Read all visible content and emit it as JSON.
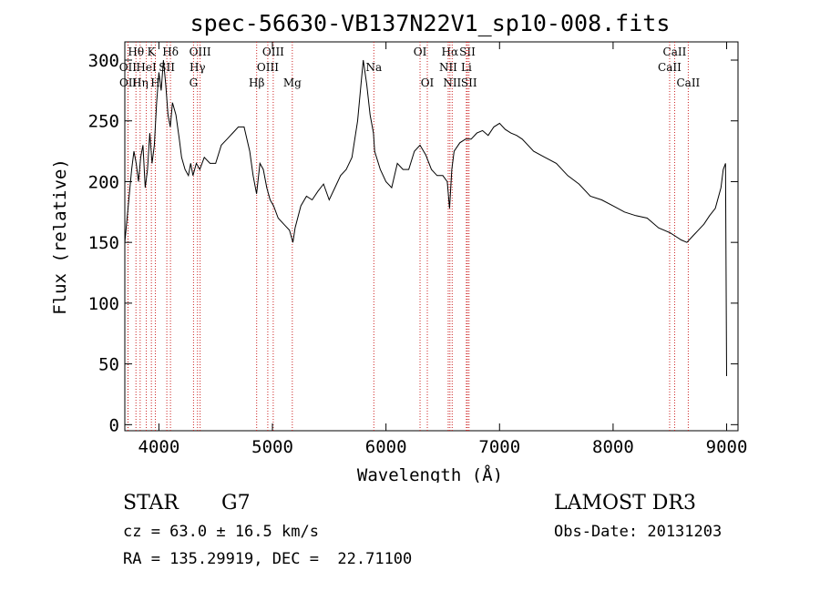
{
  "chart_data": {
    "type": "line",
    "title": "spec-56630-VB137N22V1_sp10-008.fits",
    "xlabel": "Wavelength (Å)",
    "ylabel": "Flux (relative)",
    "xlim": [
      3700,
      9100
    ],
    "ylim": [
      -5,
      315
    ],
    "xticks": [
      4000,
      5000,
      6000,
      7000,
      8000,
      9000
    ],
    "yticks": [
      0,
      50,
      100,
      150,
      200,
      250,
      300
    ],
    "spectrum": {
      "x": [
        3700,
        3720,
        3740,
        3760,
        3780,
        3800,
        3820,
        3840,
        3860,
        3880,
        3900,
        3920,
        3940,
        3960,
        3980,
        4000,
        4020,
        4040,
        4060,
        4080,
        4100,
        4120,
        4150,
        4180,
        4200,
        4230,
        4260,
        4280,
        4300,
        4330,
        4360,
        4400,
        4450,
        4500,
        4550,
        4600,
        4650,
        4700,
        4750,
        4800,
        4830,
        4860,
        4890,
        4920,
        4950,
        4980,
        5010,
        5050,
        5100,
        5150,
        5180,
        5200,
        5250,
        5300,
        5350,
        5400,
        5450,
        5500,
        5550,
        5600,
        5650,
        5700,
        5750,
        5780,
        5800,
        5830,
        5860,
        5890,
        5900,
        5950,
        6000,
        6050,
        6100,
        6150,
        6200,
        6250,
        6300,
        6350,
        6400,
        6450,
        6500,
        6540,
        6560,
        6580,
        6600,
        6650,
        6700,
        6750,
        6800,
        6850,
        6900,
        6950,
        7000,
        7050,
        7100,
        7150,
        7200,
        7300,
        7400,
        7500,
        7600,
        7700,
        7800,
        7900,
        8000,
        8100,
        8200,
        8300,
        8400,
        8500,
        8550,
        8600,
        8650,
        8700,
        8750,
        8800,
        8850,
        8900,
        8950,
        8970,
        8990,
        9000
      ],
      "y": [
        150,
        170,
        190,
        210,
        225,
        215,
        200,
        220,
        230,
        195,
        210,
        240,
        215,
        230,
        265,
        290,
        275,
        300,
        280,
        255,
        245,
        265,
        255,
        235,
        220,
        210,
        205,
        215,
        205,
        215,
        210,
        220,
        215,
        215,
        230,
        235,
        240,
        245,
        245,
        225,
        205,
        190,
        215,
        210,
        195,
        185,
        180,
        170,
        165,
        160,
        150,
        162,
        180,
        188,
        185,
        192,
        198,
        185,
        195,
        205,
        210,
        220,
        250,
        280,
        300,
        280,
        255,
        240,
        225,
        210,
        200,
        195,
        215,
        210,
        210,
        225,
        230,
        222,
        210,
        205,
        205,
        200,
        178,
        210,
        225,
        232,
        235,
        235,
        240,
        242,
        238,
        245,
        248,
        243,
        240,
        238,
        235,
        225,
        220,
        215,
        205,
        198,
        188,
        185,
        180,
        175,
        172,
        170,
        162,
        158,
        155,
        152,
        150,
        155,
        160,
        165,
        172,
        178,
        195,
        210,
        215,
        40
      ]
    },
    "emission_lines": [
      {
        "name": "Hθ",
        "wave": 3798,
        "row": 1
      },
      {
        "name": "OII",
        "wave": 3727,
        "row": 2
      },
      {
        "name": "OII",
        "wave": 3729,
        "row": 3
      },
      {
        "name": "Hη",
        "wave": 3835,
        "row": 3
      },
      {
        "name": "HeI",
        "wave": 3889,
        "row": 2
      },
      {
        "name": "K",
        "wave": 3934,
        "row": 1
      },
      {
        "name": "H",
        "wave": 3969,
        "row": 3
      },
      {
        "name": "SII",
        "wave": 4070,
        "row": 2
      },
      {
        "name": "Hδ",
        "wave": 4102,
        "row": 1
      },
      {
        "name": "OIII",
        "wave": 4363,
        "row": 1
      },
      {
        "name": "Hγ",
        "wave": 4340,
        "row": 2
      },
      {
        "name": "G",
        "wave": 4305,
        "row": 3
      },
      {
        "name": "Hβ",
        "wave": 4861,
        "row": 3
      },
      {
        "name": "OIII",
        "wave": 5007,
        "row": 1
      },
      {
        "name": "OIII",
        "wave": 4959,
        "row": 2
      },
      {
        "name": "Mg",
        "wave": 5175,
        "row": 3
      },
      {
        "name": "Na",
        "wave": 5893,
        "row": 2
      },
      {
        "name": "OI",
        "wave": 6300,
        "row": 1
      },
      {
        "name": "OI",
        "wave": 6364,
        "row": 3
      },
      {
        "name": "Hα",
        "wave": 6563,
        "row": 1
      },
      {
        "name": "NII",
        "wave": 6548,
        "row": 2
      },
      {
        "name": "NII",
        "wave": 6583,
        "row": 3
      },
      {
        "name": "SII",
        "wave": 6717,
        "row": 1
      },
      {
        "name": "Li",
        "wave": 6708,
        "row": 2
      },
      {
        "name": "SII",
        "wave": 6731,
        "row": 3
      },
      {
        "name": "CaII",
        "wave": 8542,
        "row": 1
      },
      {
        "name": "CaII",
        "wave": 8498,
        "row": 2
      },
      {
        "name": "CaII",
        "wave": 8662,
        "row": 3
      }
    ],
    "line_color": "#cc2222",
    "spectrum_color": "#000000"
  },
  "info": {
    "class": "STAR",
    "subclass": "G7",
    "survey": "LAMOST DR3",
    "cz": "cz = 63.0 ± 16.5 km/s",
    "obs_date": "Obs-Date: 20131203",
    "coords": "RA = 135.29919, DEC =  22.71100"
  }
}
